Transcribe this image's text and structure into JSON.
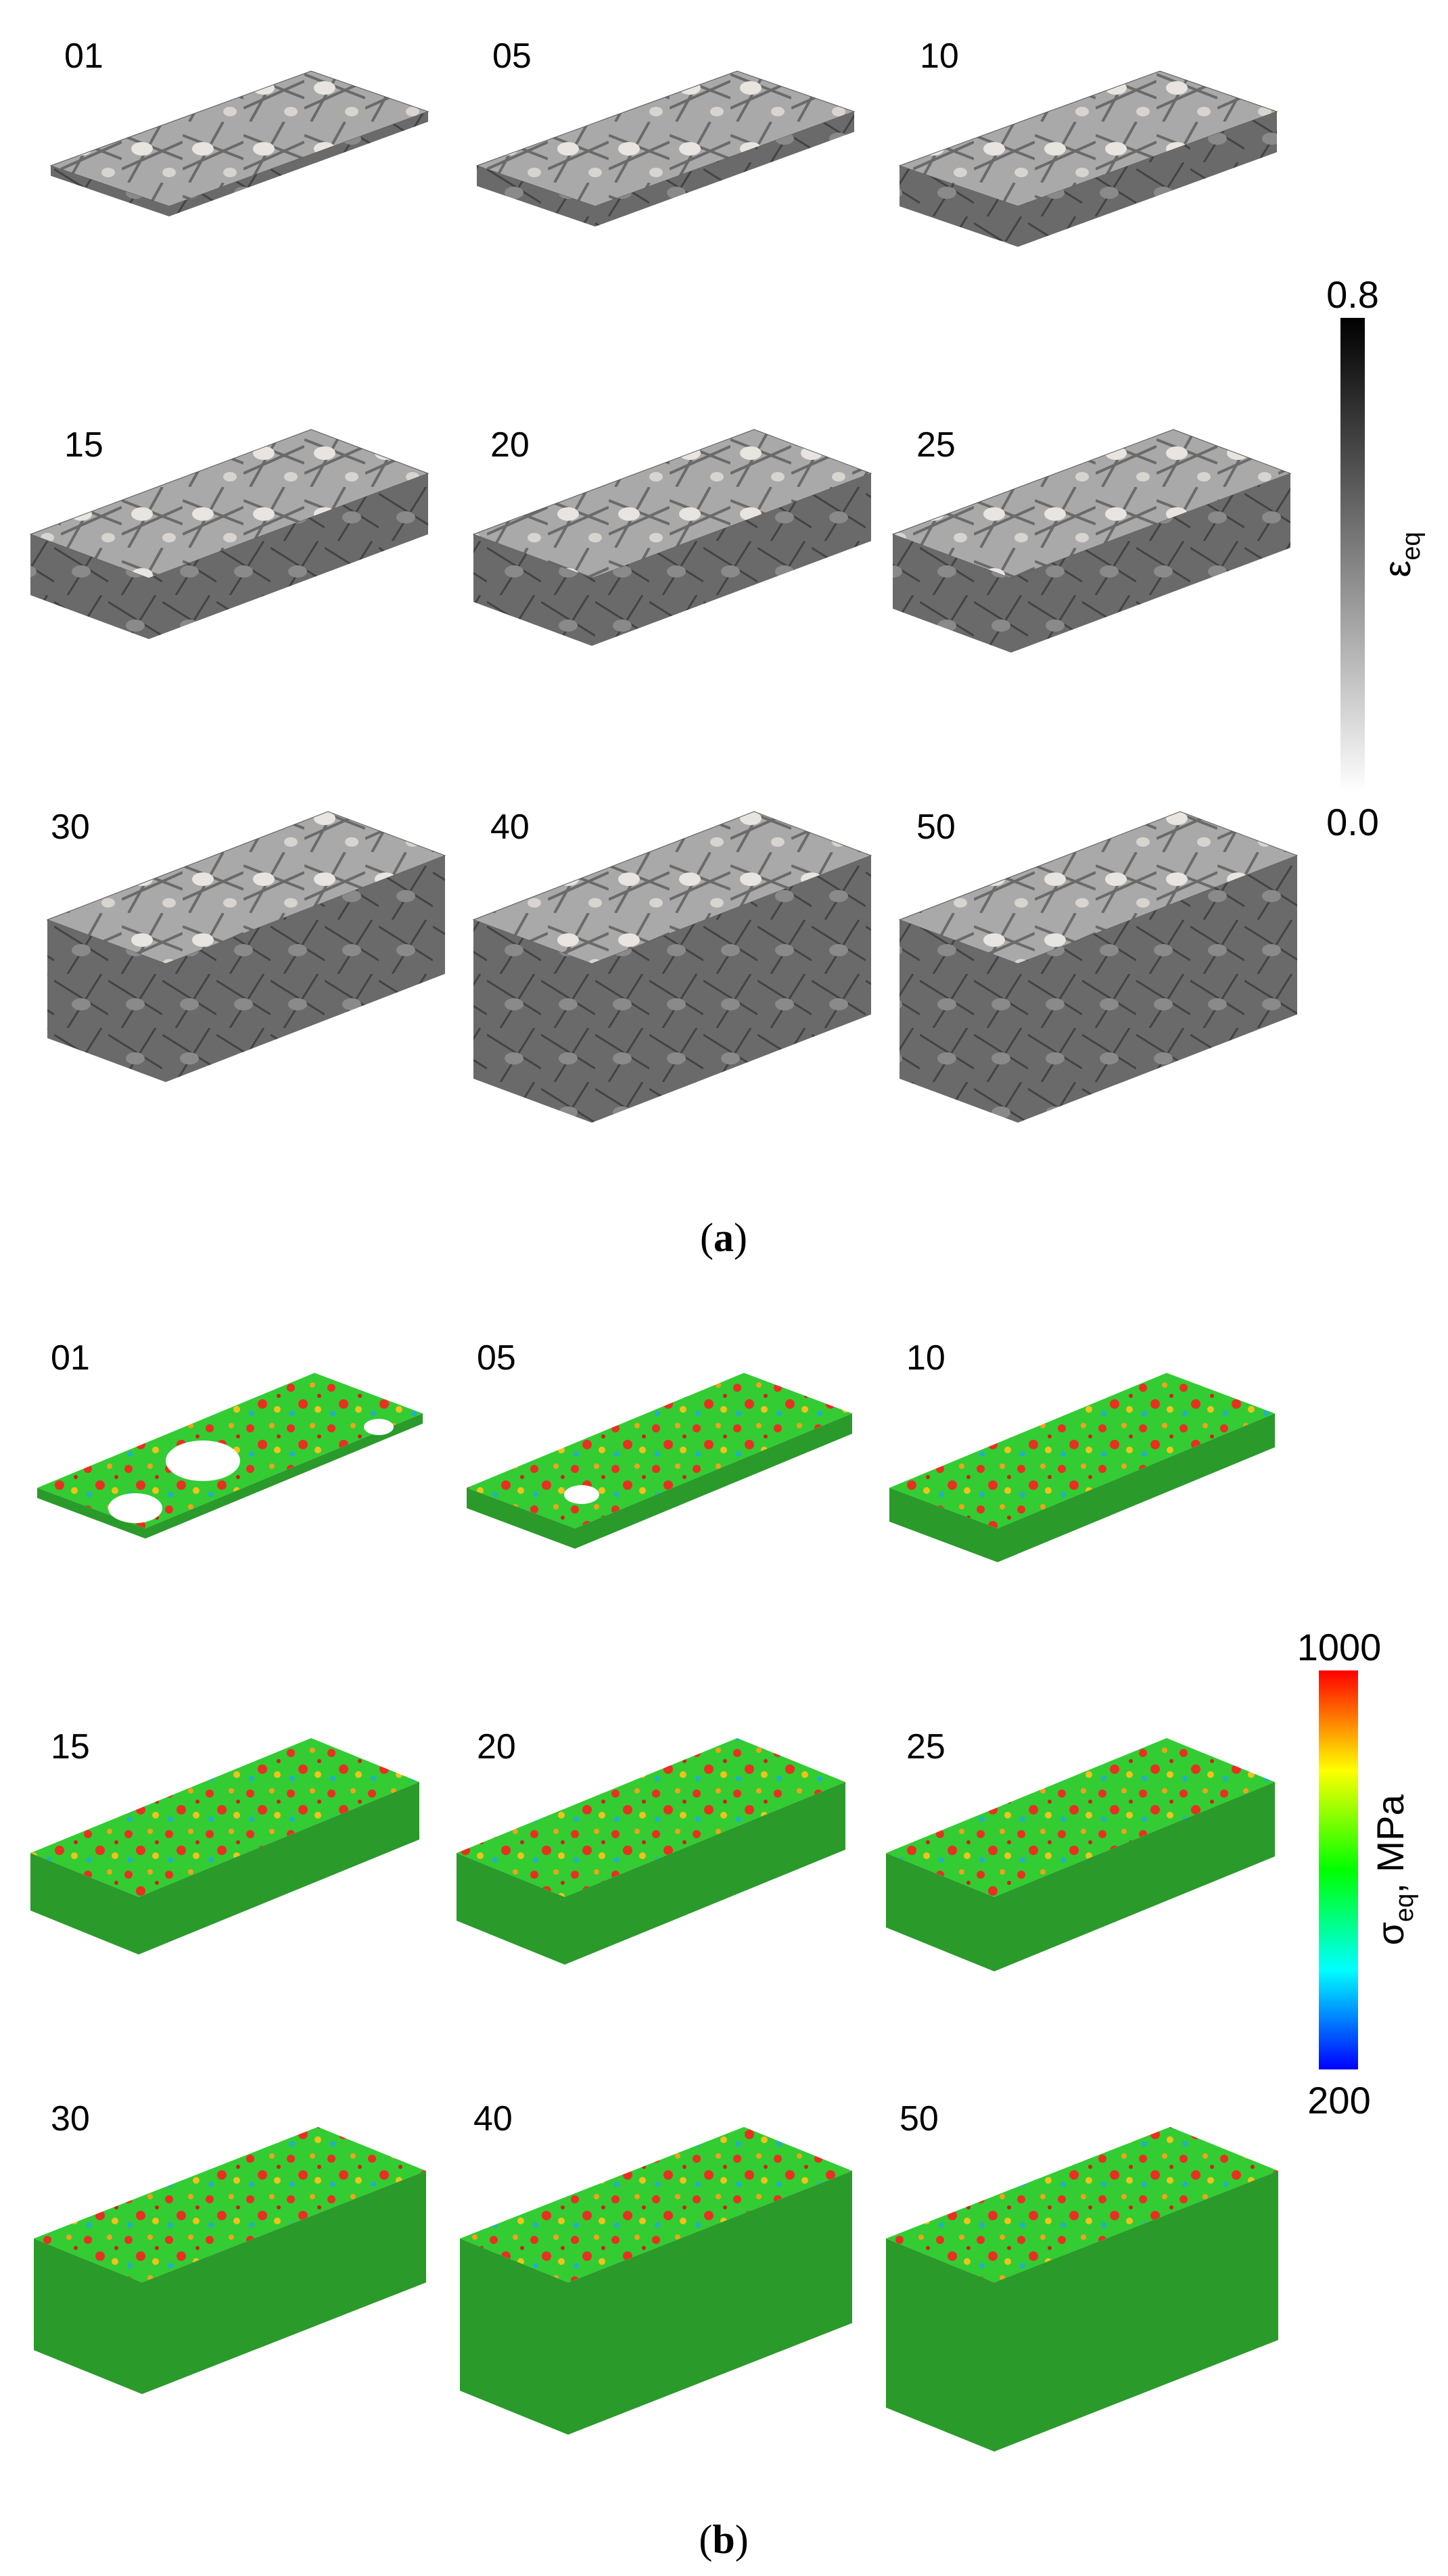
{
  "panel_a": {
    "caption_letter": "a",
    "labels": [
      "01",
      "05",
      "10",
      "15",
      "20",
      "25",
      "30",
      "40",
      "50"
    ],
    "colorbar": {
      "max_label": "0.8",
      "min_label": "0.0",
      "title_symbol": "ε",
      "title_subscript": "eq",
      "stops": [
        "#000000",
        "#ffffff"
      ]
    }
  },
  "panel_b": {
    "caption_letter": "b",
    "labels": [
      "01",
      "05",
      "10",
      "15",
      "20",
      "25",
      "30",
      "40",
      "50"
    ],
    "colorbar": {
      "max_label": "1000",
      "min_label": "200",
      "title_symbol": "σ",
      "title_subscript": "eq",
      "title_unit": ", MPa",
      "stops": [
        "#ff0000",
        "#ffff00",
        "#00ff00",
        "#00ffff",
        "#0000ff"
      ]
    }
  }
}
